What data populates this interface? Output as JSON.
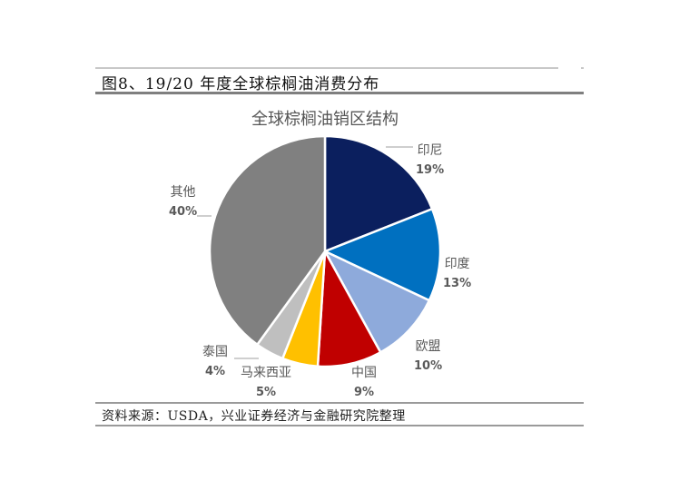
{
  "figure": {
    "title": "图8、19/20 年度全球棕榈油消费分布",
    "source": "资料来源：USDA，兴业证券经济与金融研究院整理"
  },
  "chart_data": {
    "type": "pie",
    "title": "全球棕榈油销区结构",
    "categories": [
      "印尼",
      "印度",
      "欧盟",
      "中国",
      "马来西亚",
      "泰国",
      "其他"
    ],
    "values": [
      19,
      13,
      10,
      9,
      5,
      4,
      40
    ],
    "unit": "%",
    "colors": [
      "#0b1f5e",
      "#0070c0",
      "#8eaadb",
      "#c00000",
      "#ffc000",
      "#bfbfbf",
      "#808080"
    ],
    "start_angle": "top",
    "direction": "clockwise",
    "legend": "none (data labels with leader lines)"
  },
  "labels": [
    {
      "name": "印尼",
      "pct": "19%"
    },
    {
      "name": "印度",
      "pct": "13%"
    },
    {
      "name": "欧盟",
      "pct": "10%"
    },
    {
      "name": "中国",
      "pct": "9%"
    },
    {
      "name": "马来西亚",
      "pct": "5%"
    },
    {
      "name": "泰国",
      "pct": "4%"
    },
    {
      "name": "其他",
      "pct": "40%"
    }
  ]
}
